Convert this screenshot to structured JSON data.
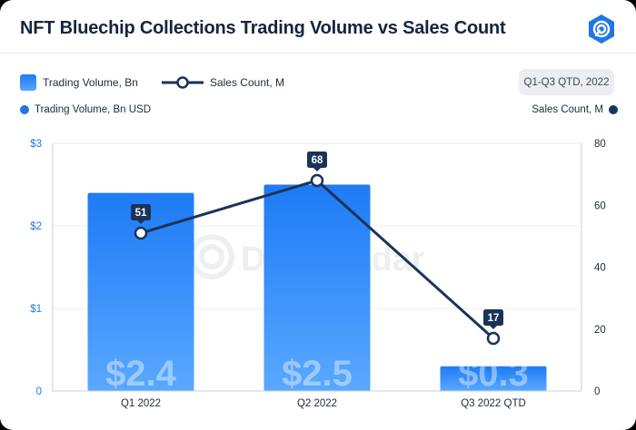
{
  "title": "NFT Bluechip Collections Trading Volume vs Sales Count",
  "legend": {
    "bar_label": "Trading Volume, Bn",
    "line_label": "Sales Count, M"
  },
  "period_button": "Q1-Q3 QTD, 2022",
  "axis_legend": {
    "left": "Trading Volume, Bn USD",
    "right": "Sales Count, M"
  },
  "colors": {
    "bar_top": "#1e7bf5",
    "bar_bottom": "#5aa8ff",
    "line": "#1a3358",
    "left_axis": "#1f76e6",
    "title": "#16243e"
  },
  "watermark_text": "DappRadar",
  "chart_data": {
    "type": "bar",
    "categories": [
      "Q1 2022",
      "Q2 2022",
      "Q3 2022 QTD"
    ],
    "series": [
      {
        "name": "Trading Volume, Bn",
        "type": "bar",
        "axis": "left",
        "values": [
          2.4,
          2.5,
          0.3
        ],
        "value_labels": [
          "$2.4",
          "$2.5",
          "$0.3"
        ]
      },
      {
        "name": "Sales Count, M",
        "type": "line",
        "axis": "right",
        "values": [
          51,
          68,
          17
        ],
        "value_labels": [
          "51",
          "68",
          "17"
        ]
      }
    ],
    "y_left": {
      "label": "Trading Volume, Bn USD",
      "lim": [
        0,
        3
      ],
      "ticks": [
        "0",
        "$1",
        "$2",
        "$3"
      ]
    },
    "y_right": {
      "label": "Sales Count, M",
      "lim": [
        0,
        80
      ],
      "ticks": [
        "0",
        "20",
        "40",
        "60",
        "80"
      ]
    },
    "grid": true
  }
}
